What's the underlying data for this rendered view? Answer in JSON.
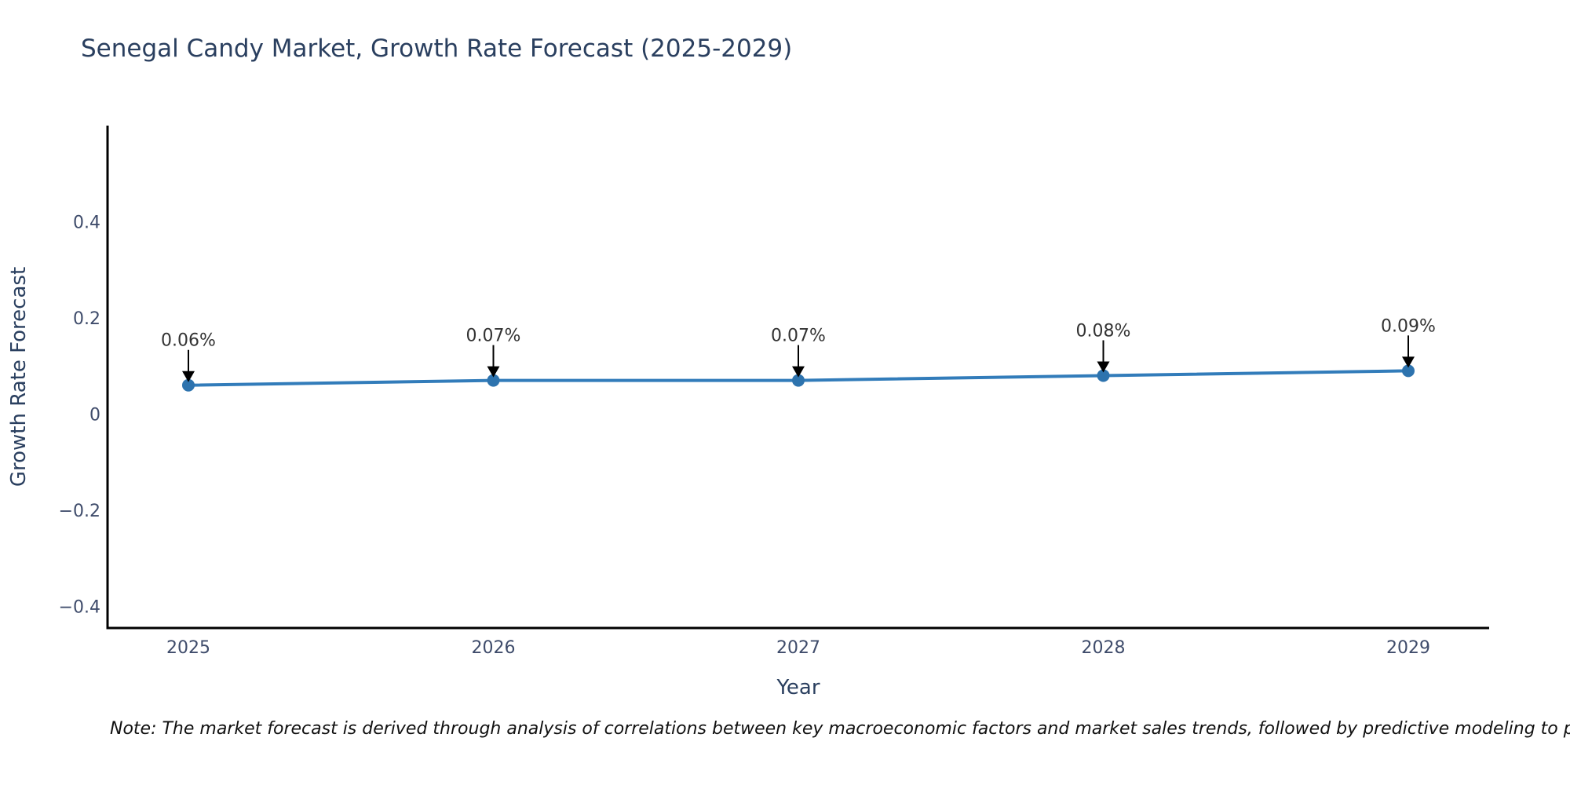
{
  "page": {
    "background": "#ffffff"
  },
  "chart_data": {
    "type": "line",
    "title": "Senegal Candy Market, Growth Rate Forecast (2025-2029)",
    "xlabel": "Year",
    "ylabel": "Growth Rate Forecast",
    "categories": [
      "2025",
      "2026",
      "2027",
      "2028",
      "2029"
    ],
    "series": [
      {
        "name": "Growth Rate Forecast",
        "values": [
          0.06,
          0.07,
          0.07,
          0.08,
          0.09
        ],
        "point_labels": [
          "0.06%",
          "0.07%",
          "0.07%",
          "0.08%",
          "0.09%"
        ]
      }
    ],
    "yticks": {
      "values": [
        0.4,
        0.2,
        0,
        -0.2,
        -0.4
      ],
      "labels": [
        "0.4",
        "0.2",
        "0",
        "−0.2",
        "−0.4"
      ]
    },
    "ylim": [
      -0.445,
      0.6
    ],
    "grid": false,
    "legend_position": "none",
    "colors": {
      "line": "#327cba",
      "marker": "#2d73ae",
      "axis": "#000000",
      "tick_text": "#3f4c6b",
      "axis_title_text": "#2a3f5f",
      "title_text": "#2a3f5f",
      "annotation_text": "#333333",
      "annotation_arrow": "#000000"
    }
  },
  "note": "Note: The market forecast is derived through analysis of correlations between key macroeconomic factors and market sales trends, followed by predictive modeling to project future sa"
}
